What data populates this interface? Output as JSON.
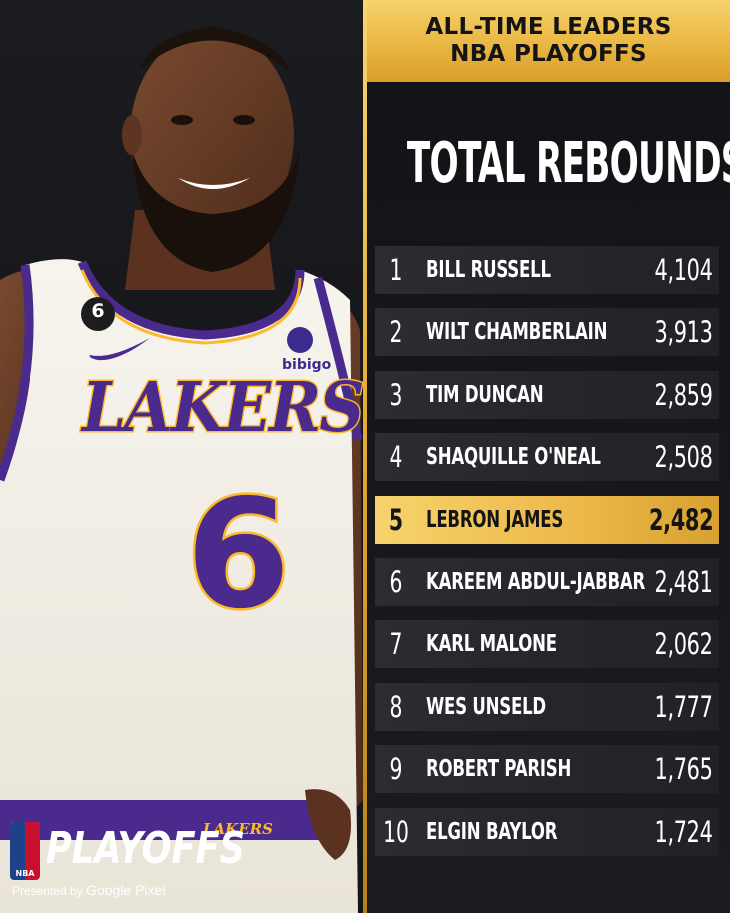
{
  "header": {
    "line1": "ALL-TIME LEADERS",
    "line2": "NBA PLAYOFFS"
  },
  "title": "TOTAL REBOUNDS",
  "leaders": [
    {
      "rank": "1",
      "name": "BILL RUSSELL",
      "value": "4,104"
    },
    {
      "rank": "2",
      "name": "WILT CHAMBERLAIN",
      "value": "3,913"
    },
    {
      "rank": "3",
      "name": "TIM DUNCAN",
      "value": "2,859"
    },
    {
      "rank": "4",
      "name": "SHAQUILLE O'NEAL",
      "value": "2,508"
    },
    {
      "rank": "5",
      "name": "LEBRON JAMES",
      "value": "2,482"
    },
    {
      "rank": "6",
      "name": "KAREEM ABDUL-JABBAR",
      "value": "2,481"
    },
    {
      "rank": "7",
      "name": "KARL MALONE",
      "value": "2,062"
    },
    {
      "rank": "8",
      "name": "WES UNSELD",
      "value": "1,777"
    },
    {
      "rank": "9",
      "name": "ROBERT PARISH",
      "value": "1,765"
    },
    {
      "rank": "10",
      "name": "ELGIN BAYLOR",
      "value": "1,724"
    }
  ],
  "highlight_rank": "5",
  "photo": {
    "jersey_team": "LAKERS",
    "jersey_number": "6",
    "patch_number": "6",
    "sponsor": "bibigo",
    "waist_text": "LAKERS"
  },
  "branding": {
    "logo_text": "NBA",
    "playoffs_word": "PLAYOFFS",
    "presented_by": "Presented by",
    "sponsor": "Google Pixel"
  },
  "colors": {
    "gold": "#ecb849",
    "jersey_purple": "#4a2a8c",
    "jersey_gold": "#fdb927",
    "jersey_white": "#f6f3ec"
  }
}
